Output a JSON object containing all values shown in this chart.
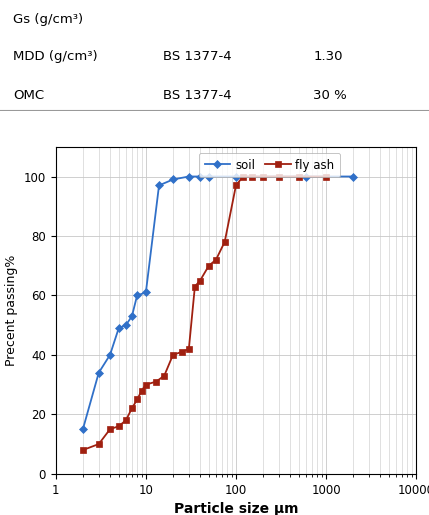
{
  "soil_x": [
    2,
    3,
    4,
    5,
    6,
    7,
    8,
    10,
    14,
    20,
    30,
    40,
    50,
    100,
    600,
    2000
  ],
  "soil_y": [
    15,
    34,
    40,
    49,
    50,
    53,
    60,
    61,
    97,
    99,
    100,
    100,
    100,
    100,
    100,
    100
  ],
  "flyash_x": [
    2,
    3,
    4,
    5,
    6,
    7,
    8,
    9,
    10,
    13,
    16,
    20,
    25,
    30,
    35,
    40,
    50,
    60,
    75,
    100,
    120,
    150,
    200,
    300,
    500,
    1000
  ],
  "flyash_y": [
    8,
    10,
    15,
    16,
    18,
    22,
    25,
    28,
    30,
    31,
    33,
    40,
    41,
    42,
    63,
    65,
    70,
    72,
    78,
    97,
    100,
    100,
    100,
    100,
    100,
    100
  ],
  "soil_color": "#3070c8",
  "flyash_color": "#a02010",
  "soil_label": "soil",
  "flyash_label": "fly ash",
  "xlabel": "Particle size μm",
  "ylabel": "Precent passing%",
  "xlim": [
    1,
    10000
  ],
  "ylim": [
    0,
    110
  ],
  "yticks": [
    0,
    20,
    40,
    60,
    80,
    100
  ],
  "xtick_labels": [
    "1",
    "10",
    "100",
    "1000",
    "10000"
  ],
  "header_line1": "Gs (g/cm³)",
  "header_line2": "MDD (g/cm³)",
  "header_line2_col2": "BS 1377-4",
  "header_line2_col3": "1.30",
  "header_line3": "OMC",
  "header_line3_col2": "BS 1377-4",
  "header_line3_col3": "30 %",
  "bg_color": "#ffffff",
  "grid_color": "#c8c8c8"
}
